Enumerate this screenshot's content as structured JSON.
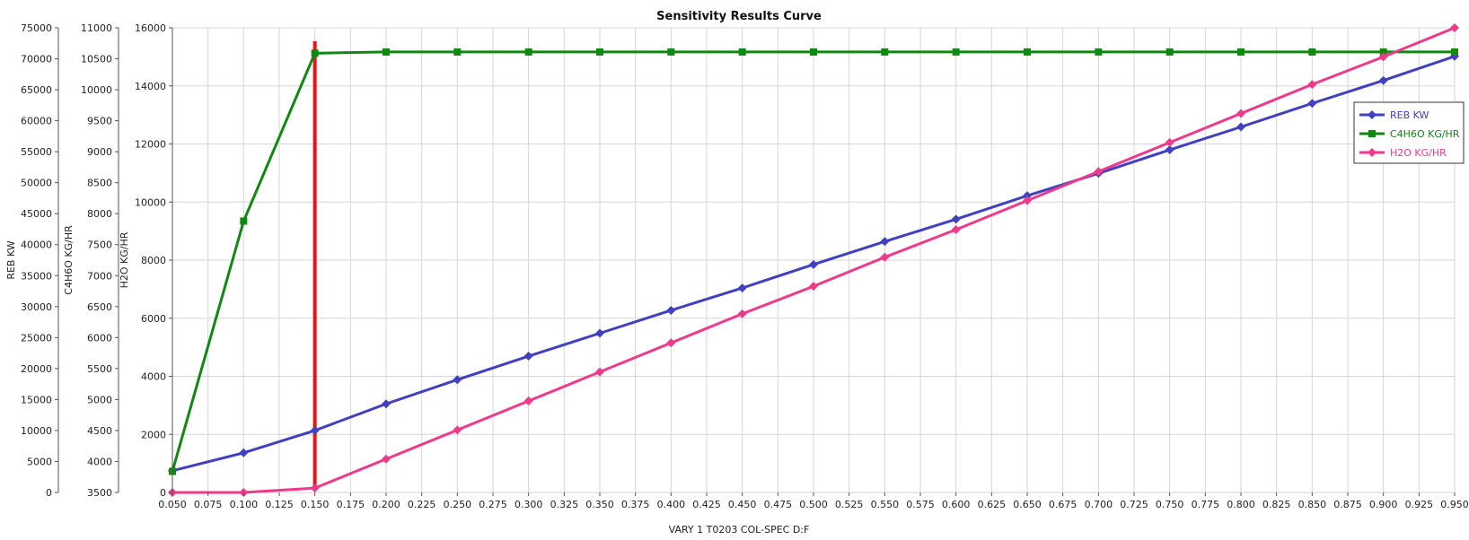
{
  "chart_data": {
    "type": "line",
    "title": "Sensitivity Results Curve",
    "xlabel": "VARY   1 T0203 COL-SPEC D:F",
    "xlim": [
      0.05,
      0.95
    ],
    "x_ticks": [
      "0.050",
      "0.075",
      "0.100",
      "0.125",
      "0.150",
      "0.175",
      "0.200",
      "0.225",
      "0.250",
      "0.275",
      "0.300",
      "0.325",
      "0.350",
      "0.375",
      "0.400",
      "0.425",
      "0.450",
      "0.475",
      "0.500",
      "0.525",
      "0.550",
      "0.575",
      "0.600",
      "0.625",
      "0.650",
      "0.675",
      "0.700",
      "0.725",
      "0.750",
      "0.775",
      "0.800",
      "0.825",
      "0.850",
      "0.875",
      "0.900",
      "0.925",
      "0.950"
    ],
    "y_axes": [
      {
        "label": "REB KW",
        "range": [
          0,
          75000
        ],
        "ticks": [
          "0",
          "5000",
          "10000",
          "15000",
          "20000",
          "25000",
          "30000",
          "35000",
          "40000",
          "45000",
          "50000",
          "55000",
          "60000",
          "65000",
          "70000",
          "75000"
        ]
      },
      {
        "label": "C4H6O KG/HR",
        "range": [
          3500,
          11000
        ],
        "ticks": [
          "3500",
          "4000",
          "4500",
          "5000",
          "5500",
          "6000",
          "6500",
          "7000",
          "7500",
          "8000",
          "8500",
          "9000",
          "9500",
          "10000",
          "10500",
          "11000"
        ]
      },
      {
        "label": "H2O KG/HR",
        "range": [
          0,
          16000
        ],
        "ticks": [
          "0",
          "2000",
          "4000",
          "6000",
          "8000",
          "10000",
          "12000",
          "14000",
          "16000"
        ]
      }
    ],
    "grid": true,
    "legend_position": "right",
    "x": [
      0.05,
      0.1,
      0.15,
      0.2,
      0.25,
      0.3,
      0.35,
      0.4,
      0.45,
      0.5,
      0.55,
      0.6,
      0.65,
      0.7,
      0.75,
      0.8,
      0.85,
      0.9,
      0.95
    ],
    "series": [
      {
        "name": "REB KW",
        "axis": 0,
        "color": "#4040c0",
        "marker": "diamond",
        "values": [
          3500,
          6400,
          10000,
          14300,
          18200,
          22000,
          25700,
          29400,
          33000,
          36800,
          40500,
          44100,
          47900,
          51500,
          55300,
          59000,
          62800,
          66500,
          70400
        ]
      },
      {
        "name": "C4H6O KG/HR",
        "axis": 1,
        "color": "#118811",
        "marker": "square",
        "values": [
          3840,
          7880,
          10590,
          10610,
          10610,
          10610,
          10610,
          10610,
          10610,
          10610,
          10610,
          10610,
          10610,
          10610,
          10610,
          10610,
          10610,
          10610,
          10610
        ]
      },
      {
        "name": "H2O KG/HR",
        "axis": 2,
        "color": "#ee3a8a",
        "marker": "diamond",
        "values": [
          0,
          0,
          150,
          1150,
          2150,
          3150,
          4150,
          5150,
          6150,
          7100,
          8100,
          9050,
          10050,
          11050,
          12050,
          13050,
          14050,
          15000,
          16000
        ]
      }
    ],
    "marker_line": {
      "x": 0.15,
      "color": "#ee1111"
    }
  }
}
